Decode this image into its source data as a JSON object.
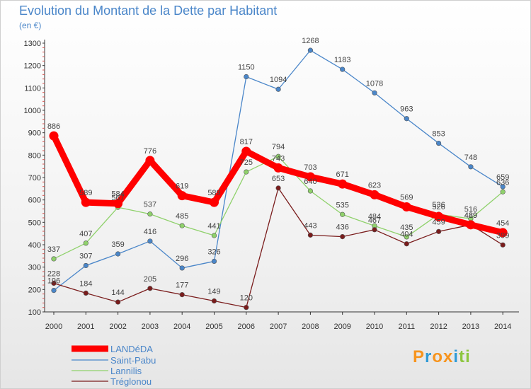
{
  "title": "Evolution du Montant de la Dette par Habitant",
  "subtitle": "(en €)",
  "logo": {
    "text": "Proxiti",
    "letters": [
      "P",
      "r",
      "o",
      "x",
      "i",
      "t",
      "i"
    ],
    "colors": [
      "#f7941d",
      "#2e9ad6",
      "#f7941d",
      "#f7941d",
      "#2e9ad6",
      "#8dc63f",
      "#8dc63f"
    ]
  },
  "chart_data": {
    "type": "line",
    "x": [
      "2000",
      "2001",
      "2002",
      "2003",
      "2004",
      "2005",
      "2006",
      "2007",
      "2008",
      "2009",
      "2010",
      "2011",
      "2012",
      "2013",
      "2014"
    ],
    "ylim": [
      100,
      1300
    ],
    "yticks": [
      100,
      200,
      300,
      400,
      500,
      600,
      700,
      800,
      900,
      1000,
      1100,
      1200,
      1300
    ],
    "grid": false,
    "legend_position": "bottom-left",
    "series": [
      {
        "name": "LANDéDA",
        "color": "#ff0000",
        "emphasis": true,
        "values": [
          886,
          589,
          584,
          776,
          619,
          589,
          817,
          743,
          703,
          671,
          623,
          569,
          526,
          489,
          454
        ],
        "labels": [
          "886",
          "589",
          "584",
          "776",
          "619",
          "589",
          "817",
          "743",
          "703",
          "671",
          "623",
          "569",
          "526",
          "489",
          "454"
        ]
      },
      {
        "name": "Saint-Pabu",
        "color": "#4a86c9",
        "emphasis": false,
        "values": [
          196,
          307,
          359,
          416,
          296,
          326,
          1150,
          1094,
          1268,
          1183,
          1078,
          963,
          853,
          748,
          659
        ],
        "labels": [
          "196",
          "307",
          "359",
          "416",
          "296",
          "326",
          "1150",
          "1094",
          "1268",
          "1183",
          "1078",
          "963",
          "853",
          "748",
          "659"
        ]
      },
      {
        "name": "Lannilis",
        "color": "#8fd16b",
        "emphasis": false,
        "values": [
          337,
          407,
          567,
          537,
          485,
          441,
          725,
          794,
          640,
          535,
          484,
          435,
          536,
          516,
          636
        ],
        "labels": [
          "337",
          "407",
          "567",
          "537",
          "485",
          "441",
          "725",
          "794",
          "640",
          "535",
          "484",
          "435",
          "536",
          "516",
          "636"
        ]
      },
      {
        "name": "Tréglonou",
        "color": "#7a1c1c",
        "emphasis": false,
        "values": [
          228,
          184,
          144,
          205,
          177,
          149,
          120,
          653,
          443,
          436,
          467,
          404,
          459,
          489,
          399
        ],
        "labels": [
          "228",
          "184",
          "144",
          "205",
          "177",
          "149",
          "120",
          "653",
          "443",
          "436",
          "467",
          "404",
          "459",
          "489",
          "399"
        ]
      }
    ]
  }
}
